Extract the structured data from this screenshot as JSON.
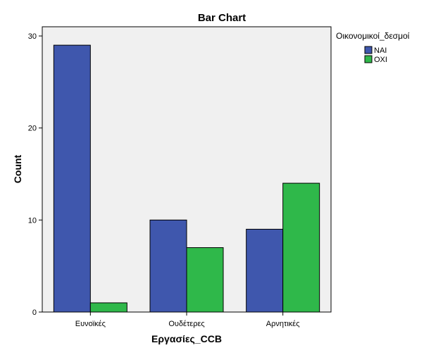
{
  "chart_data": {
    "type": "bar",
    "title": "Bar Chart",
    "xlabel": "Εργασίες_CCB",
    "ylabel": "Count",
    "categories": [
      "Ευνοϊκές",
      "Ουδέτερες",
      "Αρνητικές"
    ],
    "series": [
      {
        "name": "ΝΑΙ",
        "values": [
          29,
          10,
          9
        ],
        "color": "#3f57ad"
      },
      {
        "name": "ΟΧΙ",
        "values": [
          1,
          7,
          14
        ],
        "color": "#2fb84a"
      }
    ],
    "ylim": [
      0,
      31
    ],
    "yticks": [
      0,
      10,
      20,
      30
    ],
    "legend": {
      "title": "Οικονομικοί_δεσμοί",
      "placement": "right"
    },
    "plot_background": "#f0f0f0",
    "grid": false
  }
}
